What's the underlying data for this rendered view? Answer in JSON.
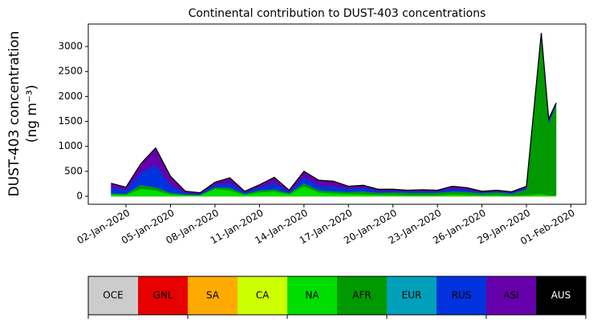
{
  "chart_data": {
    "type": "stacked_area",
    "title": "Continental contribution to DUST-403 concentrations",
    "ylabel": [
      "DUST-403 concentration",
      "(ng m⁻³)"
    ],
    "x": [
      "2020-01-01T00:00",
      "2020-01-02T00:00",
      "2020-01-03T00:00",
      "2020-01-04T00:00",
      "2020-01-05T00:00",
      "2020-01-06T00:00",
      "2020-01-07T00:00",
      "2020-01-08T00:00",
      "2020-01-09T00:00",
      "2020-01-10T00:00",
      "2020-01-11T00:00",
      "2020-01-12T00:00",
      "2020-01-13T00:00",
      "2020-01-14T00:00",
      "2020-01-15T00:00",
      "2020-01-16T00:00",
      "2020-01-17T00:00",
      "2020-01-18T00:00",
      "2020-01-19T00:00",
      "2020-01-20T00:00",
      "2020-01-21T00:00",
      "2020-01-22T00:00",
      "2020-01-23T00:00",
      "2020-01-24T00:00",
      "2020-01-25T00:00",
      "2020-01-26T00:00",
      "2020-01-27T00:00",
      "2020-01-28T00:00",
      "2020-01-29T00:00",
      "2020-01-30T00:00",
      "2020-01-30T12:00",
      "2020-01-31T00:00"
    ],
    "series": [
      {
        "name": "OCE",
        "color": "#cccccc",
        "values": [
          0,
          0,
          0,
          0,
          0,
          0,
          0,
          0,
          0,
          0,
          0,
          0,
          0,
          0,
          0,
          0,
          0,
          0,
          0,
          0,
          0,
          0,
          0,
          0,
          0,
          0,
          0,
          0,
          0,
          0,
          0,
          0
        ]
      },
      {
        "name": "GNL",
        "color": "#e60000",
        "values": [
          0,
          0,
          0,
          0,
          0,
          0,
          0,
          0,
          0,
          0,
          0,
          0,
          0,
          0,
          0,
          0,
          0,
          0,
          0,
          0,
          0,
          0,
          0,
          0,
          0,
          0,
          0,
          0,
          0,
          0,
          0,
          0
        ]
      },
      {
        "name": "SA",
        "color": "#ffaa00",
        "values": [
          0,
          0,
          0,
          0,
          0,
          0,
          0,
          0,
          0,
          0,
          0,
          0,
          0,
          0,
          0,
          0,
          0,
          0,
          0,
          0,
          0,
          0,
          0,
          0,
          0,
          0,
          0,
          0,
          0,
          0,
          0,
          0
        ]
      },
      {
        "name": "CA",
        "color": "#ccff00",
        "values": [
          0,
          0,
          0,
          0,
          0,
          0,
          0,
          0,
          0,
          0,
          0,
          0,
          0,
          0,
          0,
          0,
          0,
          0,
          0,
          0,
          0,
          0,
          0,
          0,
          0,
          0,
          0,
          0,
          0,
          0,
          0,
          0
        ]
      },
      {
        "name": "NA",
        "color": "#00dd00",
        "values": [
          40,
          30,
          150,
          120,
          40,
          20,
          20,
          150,
          120,
          30,
          80,
          100,
          40,
          200,
          80,
          60,
          50,
          40,
          30,
          30,
          20,
          20,
          20,
          40,
          30,
          20,
          20,
          10,
          20,
          50,
          20,
          20
        ]
      },
      {
        "name": "AFR",
        "color": "#009900",
        "values": [
          20,
          20,
          80,
          60,
          30,
          20,
          10,
          30,
          50,
          20,
          40,
          40,
          20,
          60,
          40,
          40,
          40,
          60,
          40,
          50,
          50,
          50,
          50,
          60,
          60,
          40,
          60,
          40,
          120,
          3150,
          1450,
          1800
        ]
      },
      {
        "name": "EUR",
        "color": "#00a0bb",
        "values": [
          0,
          0,
          0,
          0,
          0,
          0,
          0,
          0,
          0,
          0,
          0,
          0,
          0,
          0,
          0,
          0,
          0,
          0,
          0,
          0,
          0,
          0,
          0,
          0,
          0,
          0,
          0,
          0,
          0,
          0,
          0,
          0
        ]
      },
      {
        "name": "RUS",
        "color": "#0033dd",
        "values": [
          120,
          80,
          250,
          450,
          150,
          30,
          20,
          50,
          100,
          30,
          60,
          130,
          30,
          130,
          100,
          100,
          60,
          70,
          40,
          30,
          30,
          30,
          30,
          50,
          40,
          20,
          20,
          20,
          30,
          60,
          40,
          30
        ]
      },
      {
        "name": "ASI",
        "color": "#6600aa",
        "values": [
          80,
          50,
          170,
          340,
          180,
          30,
          20,
          50,
          100,
          20,
          50,
          110,
          30,
          110,
          100,
          100,
          50,
          50,
          30,
          30,
          20,
          30,
          20,
          50,
          40,
          20,
          20,
          20,
          30,
          10,
          40,
          20
        ]
      },
      {
        "name": "AUS",
        "color": "#000000",
        "values": [
          0,
          0,
          0,
          0,
          0,
          0,
          0,
          0,
          0,
          0,
          0,
          0,
          0,
          0,
          0,
          0,
          0,
          0,
          0,
          0,
          0,
          0,
          0,
          0,
          0,
          0,
          0,
          0,
          0,
          0,
          0,
          0
        ]
      }
    ],
    "xlim": [
      "2019-12-30T11:00",
      "2020-02-02T00:00"
    ],
    "xticks": [
      {
        "value": "2020-01-02T00:00",
        "label": "02-Jan-2020"
      },
      {
        "value": "2020-01-05T00:00",
        "label": "05-Jan-2020"
      },
      {
        "value": "2020-01-08T00:00",
        "label": "08-Jan-2020"
      },
      {
        "value": "2020-01-11T00:00",
        "label": "11-Jan-2020"
      },
      {
        "value": "2020-01-14T00:00",
        "label": "14-Jan-2020"
      },
      {
        "value": "2020-01-17T00:00",
        "label": "17-Jan-2020"
      },
      {
        "value": "2020-01-20T00:00",
        "label": "20-Jan-2020"
      },
      {
        "value": "2020-01-23T00:00",
        "label": "23-Jan-2020"
      },
      {
        "value": "2020-01-26T00:00",
        "label": "26-Jan-2020"
      },
      {
        "value": "2020-01-29T00:00",
        "label": "29-Jan-2020"
      },
      {
        "value": "2020-02-01T00:00",
        "label": "01-Feb-2020"
      }
    ],
    "ylim": [
      -160,
      3450
    ],
    "yticks": [
      0,
      500,
      1000,
      1500,
      2000,
      2500,
      3000
    ]
  }
}
